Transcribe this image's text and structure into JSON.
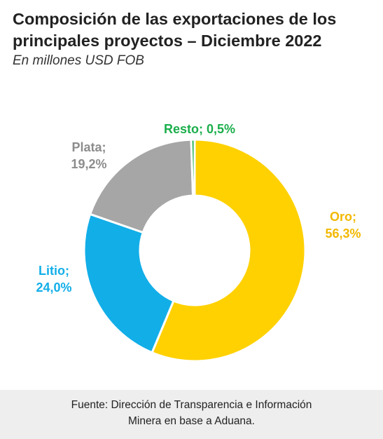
{
  "header": {
    "title": "Composición de las exportaciones de los principales proyectos – Diciembre 2022",
    "subtitle": "En millones  USD FOB"
  },
  "chart_data": {
    "type": "pie",
    "variant": "donut",
    "categories": [
      "Oro",
      "Litio",
      "Plata",
      "Resto"
    ],
    "values": [
      56.3,
      24.0,
      19.2,
      0.5
    ],
    "labels": [
      "Oro;\n56,3%",
      "Litio;\n24,0%",
      "Plata;\n19,2%",
      "Resto; 0,5%"
    ],
    "colors": [
      "#FFD100",
      "#12AEE8",
      "#A6A6A6",
      "#1AAE4B"
    ],
    "label_colors": [
      "#F2B800",
      "#12AEE8",
      "#8C8C8C",
      "#1AAE4B"
    ],
    "legend": false
  },
  "footer": {
    "source_line1": "Fuente: Dirección de Transparencia e Información",
    "source_line2": "Minera en base a Aduana."
  }
}
